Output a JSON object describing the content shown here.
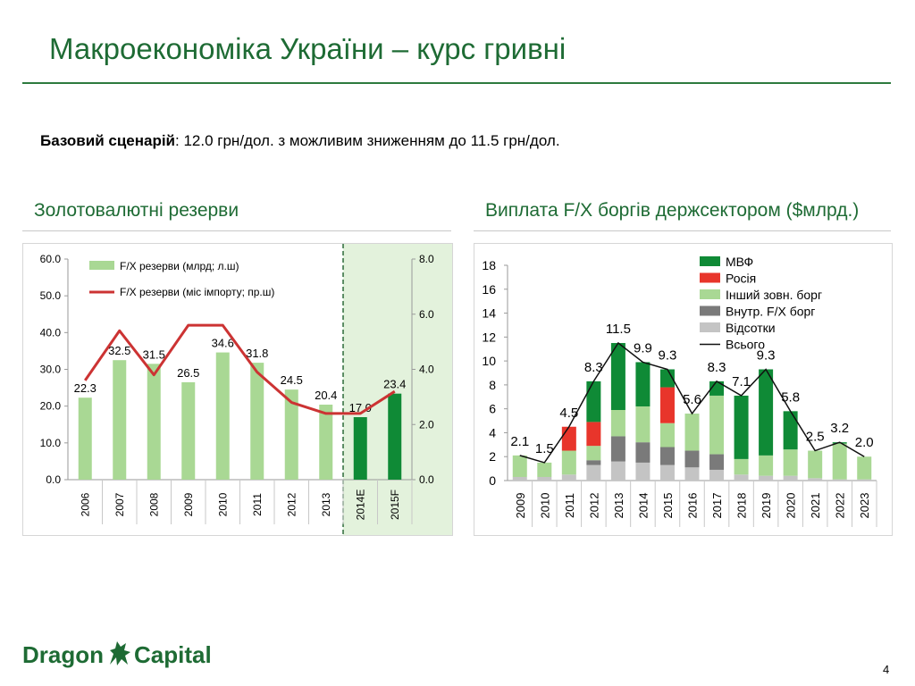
{
  "header": {
    "title": "Макроекономіка України – курс гривні"
  },
  "scenario": {
    "label": "Базовий сценарій",
    "text": ": 12.0 грн/дол. з можливим зниженням до 11.5 грн/дол."
  },
  "left_section": {
    "title": "Золотовалютні резерви"
  },
  "right_section": {
    "title": "Виплата F/X боргів держсектором ($млрд.)"
  },
  "colors": {
    "brand_green": "#1e6b34",
    "light_green": "#a9d894",
    "dark_green": "#0f8a36",
    "line_red": "#cc3333",
    "forecast_shade": "#e3f2dc",
    "russia_red": "#e8352b",
    "domestic_gray": "#7a7a7a",
    "interest_gray": "#c4c4c4"
  },
  "chart_data": [
    {
      "type": "bar",
      "categories": [
        "2006",
        "2007",
        "2008",
        "2009",
        "2010",
        "2011",
        "2012",
        "2013",
        "2014E",
        "2015F"
      ],
      "series": [
        {
          "name": "F/X резерви (млрд; л.ш)",
          "values": [
            22.3,
            32.5,
            31.5,
            26.5,
            34.6,
            31.8,
            24.5,
            20.4,
            17.0,
            23.4
          ],
          "labels": [
            "22.3",
            "32.5",
            "31.5",
            "26.5",
            "34.6",
            "31.8",
            "24.5",
            "20.4",
            "17.0",
            "23.4"
          ],
          "axis": "left"
        },
        {
          "name": "F/X резерви (міс імпорту; пр.ш)",
          "type": "line",
          "values": [
            3.6,
            5.4,
            3.8,
            5.6,
            5.6,
            3.9,
            2.8,
            2.4,
            2.4,
            3.2
          ],
          "axis": "right"
        }
      ],
      "left_axis": {
        "ylim": [
          0,
          60
        ],
        "ticks": [
          "0.0",
          "10.0",
          "20.0",
          "30.0",
          "40.0",
          "50.0",
          "60.0"
        ]
      },
      "right_axis": {
        "ylim": [
          0,
          8
        ],
        "ticks": [
          "0.0",
          "2.0",
          "4.0",
          "6.0",
          "8.0"
        ]
      },
      "forecast_from": "2014E",
      "legend": "top"
    },
    {
      "type": "bar",
      "stacked": true,
      "categories": [
        "2009",
        "2010",
        "2011",
        "2012",
        "2013",
        "2014",
        "2015",
        "2016",
        "2017",
        "2018",
        "2019",
        "2020",
        "2021",
        "2022",
        "2023"
      ],
      "series": [
        {
          "name": "Відсотки",
          "values": [
            0.3,
            0.3,
            0.5,
            1.3,
            1.6,
            1.5,
            1.3,
            1.1,
            0.9,
            0.5,
            0.4,
            0.4,
            0.2,
            0.1,
            0.1
          ]
        },
        {
          "name": "Внутр. F/X борг",
          "values": [
            0.0,
            0.0,
            0.0,
            0.4,
            2.1,
            1.7,
            1.5,
            1.4,
            1.3,
            0.0,
            0.0,
            0.0,
            0.0,
            0.0,
            0.0
          ]
        },
        {
          "name": "Інший зовн. борг",
          "values": [
            1.8,
            1.2,
            2.0,
            1.2,
            2.2,
            3.0,
            2.0,
            3.1,
            4.9,
            1.3,
            1.7,
            2.2,
            2.3,
            3.0,
            1.9
          ]
        },
        {
          "name": "Росія",
          "values": [
            0.0,
            0.0,
            2.0,
            2.0,
            0.0,
            0.0,
            3.0,
            0.0,
            0.0,
            0.0,
            0.0,
            0.0,
            0.0,
            0.0,
            0.0
          ]
        },
        {
          "name": "МВФ",
          "values": [
            0.0,
            0.0,
            0.0,
            3.4,
            5.6,
            3.7,
            1.5,
            0.0,
            1.2,
            5.3,
            7.2,
            3.2,
            0.0,
            0.1,
            0.0
          ]
        },
        {
          "name": "Всього",
          "type": "line",
          "values": [
            2.1,
            1.5,
            4.5,
            8.3,
            11.5,
            9.9,
            9.3,
            5.6,
            8.3,
            7.1,
            9.3,
            5.8,
            2.5,
            3.2,
            2.0
          ],
          "labels": [
            "2.1",
            "1.5",
            "4.5",
            "8.3",
            "11.5",
            "9.9",
            "9.3",
            "5.6",
            "8.3",
            "7.1",
            "9.3",
            "5.8",
            "2.5",
            "3.2",
            "2.0"
          ]
        }
      ],
      "ylim": [
        0,
        18
      ],
      "yticks": [
        "0",
        "2",
        "4",
        "6",
        "8",
        "10",
        "12",
        "14",
        "16",
        "18"
      ],
      "legend": "top-right"
    }
  ],
  "footer": {
    "logo_word1": "Dragon",
    "logo_word2": "Capital",
    "page_number": "4"
  }
}
